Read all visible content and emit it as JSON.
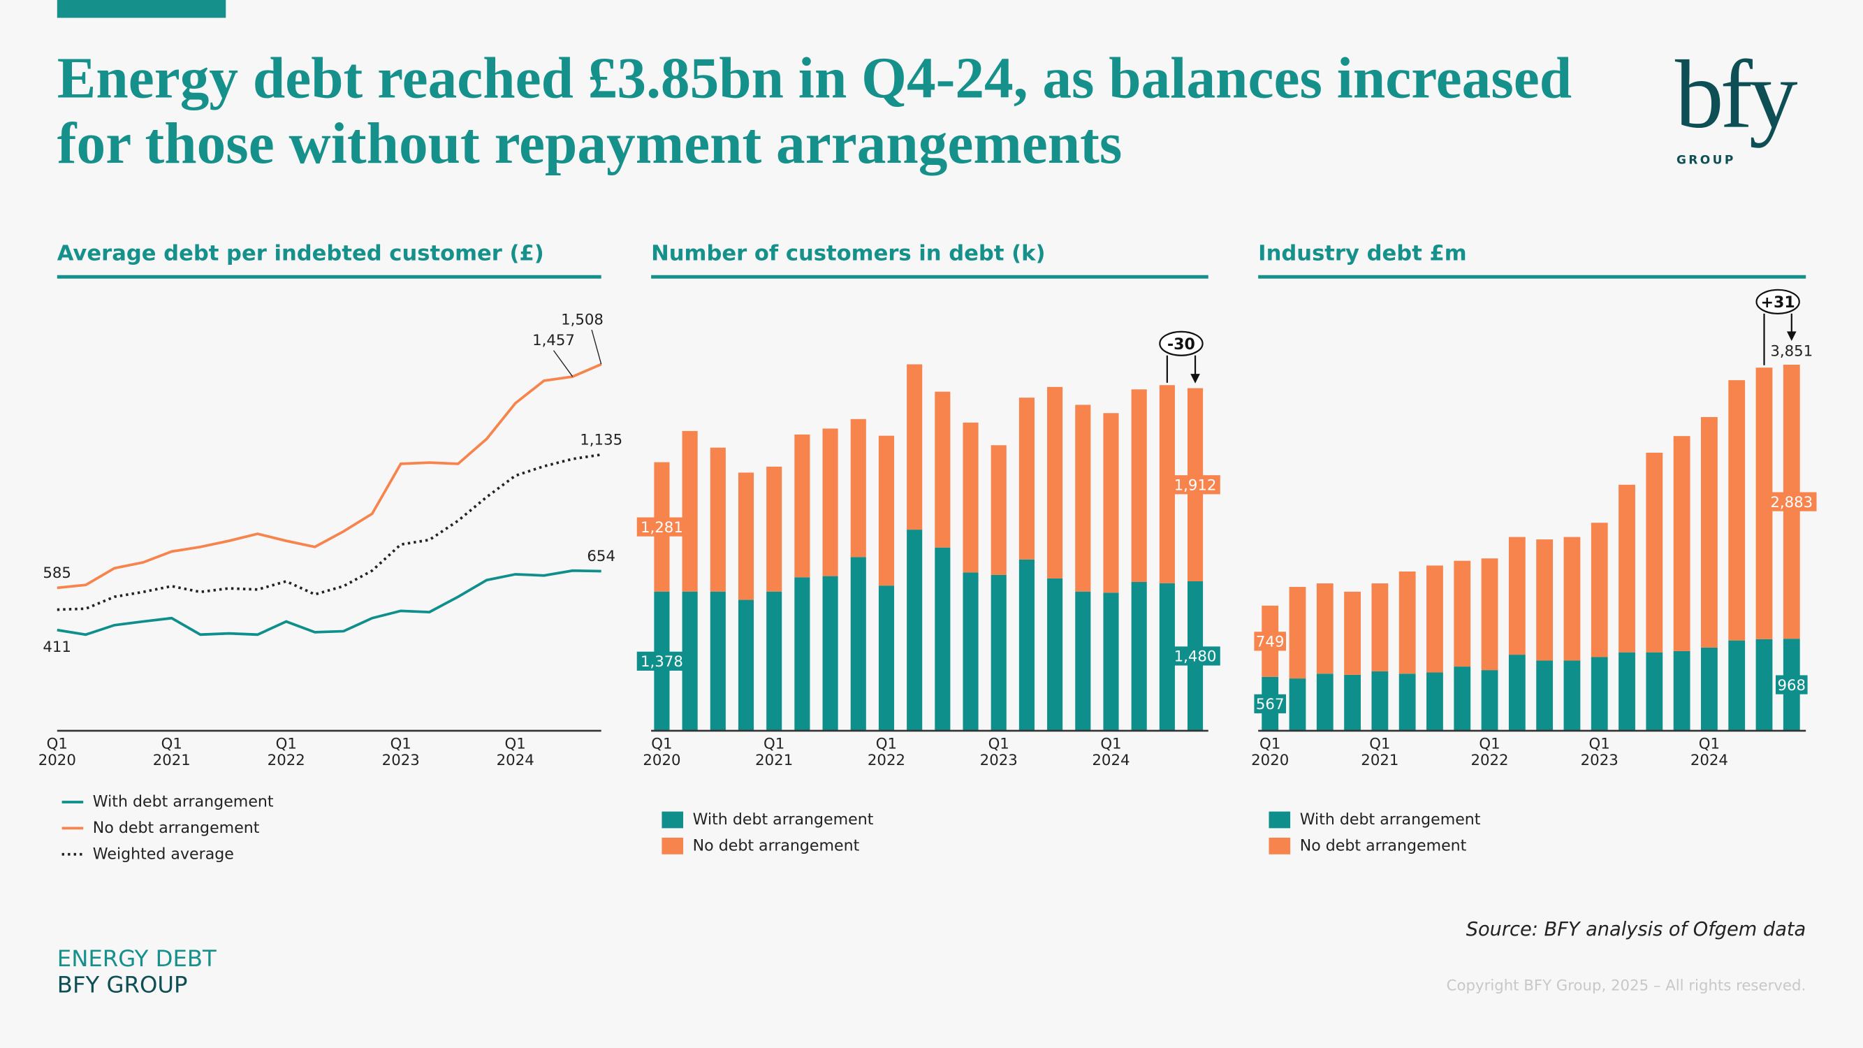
{
  "header": {
    "title": "Energy debt reached £3.85bn in Q4-24, as balances increased for those without repayment arrangements",
    "logo": "bfy",
    "logo_sub": "GROUP"
  },
  "chart_data": [
    {
      "type": "line",
      "title": "Average debt per indebted customer (£)",
      "categories": [
        "Q1 2020",
        null,
        null,
        null,
        "Q1 2021",
        null,
        null,
        null,
        "Q1 2022",
        null,
        null,
        null,
        "Q1 2023",
        null,
        null,
        null,
        "Q1 2024",
        null,
        null,
        null
      ],
      "ylim": [
        0,
        1550
      ],
      "series": [
        {
          "name": "With debt arrangement",
          "color": "#0e8f8b",
          "line_style": "solid",
          "values": [
            411,
            392,
            431,
            446,
            460,
            392,
            397,
            392,
            446,
            402,
            406,
            460,
            490,
            485,
            548,
            617,
            641,
            636,
            656,
            654
          ],
          "value_labels": [
            "411",
            null,
            null,
            null,
            null,
            null,
            null,
            null,
            null,
            null,
            null,
            null,
            null,
            null,
            null,
            null,
            null,
            null,
            null,
            "654"
          ]
        },
        {
          "name": "No debt arrangement",
          "color": "#f7834d",
          "line_style": "solid",
          "values": [
            585,
            597,
            666,
            690,
            735,
            754,
            779,
            808,
            779,
            754,
            818,
            891,
            1097,
            1102,
            1097,
            1200,
            1347,
            1440,
            1457,
            1508
          ],
          "value_labels": [
            "585",
            null,
            null,
            null,
            null,
            null,
            null,
            null,
            null,
            null,
            null,
            null,
            null,
            null,
            null,
            null,
            null,
            null,
            "1,457",
            "1,508"
          ]
        },
        {
          "name": "Weighted average",
          "color": "#222222",
          "line_style": "dotted",
          "values": [
            495,
            499,
            548,
            568,
            592,
            568,
            583,
            578,
            612,
            558,
            592,
            656,
            764,
            783,
            862,
            960,
            1048,
            1087,
            1117,
            1135
          ],
          "value_labels": [
            null,
            null,
            null,
            null,
            null,
            null,
            null,
            null,
            null,
            null,
            null,
            null,
            null,
            null,
            null,
            null,
            null,
            null,
            null,
            "1,135"
          ]
        }
      ]
    },
    {
      "type": "stacked_bar",
      "title": "Number of customers in debt (k)",
      "categories": [
        "Q1 2020",
        null,
        null,
        null,
        "Q1 2021",
        null,
        null,
        null,
        "Q1 2022",
        null,
        null,
        null,
        "Q1 2023",
        null,
        null,
        null,
        "Q1 2024",
        null,
        null,
        null
      ],
      "ylim": [
        0,
        4000
      ],
      "annotation": "-30",
      "series": [
        {
          "name": "With debt arrangement",
          "color": "#0e8f8b",
          "values": [
            1378,
            1378,
            1378,
            1296,
            1378,
            1519,
            1531,
            1720,
            1437,
            1991,
            1814,
            1567,
            1543,
            1696,
            1508,
            1378,
            1367,
            1473,
            1461,
            1480
          ],
          "value_labels": [
            "1,378",
            null,
            null,
            null,
            null,
            null,
            null,
            null,
            null,
            null,
            null,
            null,
            null,
            null,
            null,
            null,
            null,
            null,
            null,
            "1,480"
          ]
        },
        {
          "name": "No debt arrangement",
          "color": "#f7834d",
          "values": [
            1281,
            1590,
            1425,
            1260,
            1237,
            1414,
            1461,
            1366,
            1484,
            1637,
            1543,
            1484,
            1284,
            1602,
            1896,
            1849,
            1778,
            1907,
            1961,
            1912
          ],
          "value_labels": [
            "1,281",
            null,
            null,
            null,
            null,
            null,
            null,
            null,
            null,
            null,
            null,
            null,
            null,
            null,
            null,
            null,
            null,
            null,
            null,
            "1,912"
          ]
        }
      ]
    },
    {
      "type": "stacked_bar",
      "title": "Industry debt £m",
      "categories": [
        "Q1 2020",
        null,
        null,
        null,
        "Q1 2021",
        null,
        null,
        null,
        "Q1 2022",
        null,
        null,
        null,
        "Q1 2023",
        null,
        null,
        null,
        "Q1 2024",
        null,
        null,
        null
      ],
      "ylim": [
        0,
        4000
      ],
      "annotation": "+31",
      "total_label": {
        "value": 3851,
        "label": "3,851"
      },
      "series": [
        {
          "name": "With debt arrangement",
          "color": "#0e8f8b",
          "values": [
            567,
            550,
            600,
            588,
            625,
            600,
            613,
            675,
            638,
            800,
            738,
            738,
            775,
            825,
            825,
            838,
            875,
            950,
            963,
            968
          ],
          "value_labels": [
            "567",
            null,
            null,
            null,
            null,
            null,
            null,
            null,
            null,
            null,
            null,
            null,
            null,
            null,
            null,
            null,
            null,
            null,
            null,
            "968"
          ]
        },
        {
          "name": "No debt arrangement",
          "color": "#f7834d",
          "values": [
            749,
            963,
            950,
            875,
            925,
            1075,
            1125,
            1113,
            1175,
            1238,
            1275,
            1300,
            1413,
            1763,
            2100,
            2262,
            2425,
            2738,
            2857,
            2883
          ],
          "value_labels": [
            "749",
            null,
            null,
            null,
            null,
            null,
            null,
            null,
            null,
            null,
            null,
            null,
            null,
            null,
            null,
            null,
            null,
            null,
            null,
            "2,883"
          ]
        }
      ]
    }
  ],
  "footer": {
    "source": "Source: BFY analysis of Ofgem data",
    "brand_line1": "ENERGY DEBT",
    "brand_line2": "BFY GROUP",
    "copyright": "Copyright BFY Group, 2025 – All rights reserved."
  }
}
